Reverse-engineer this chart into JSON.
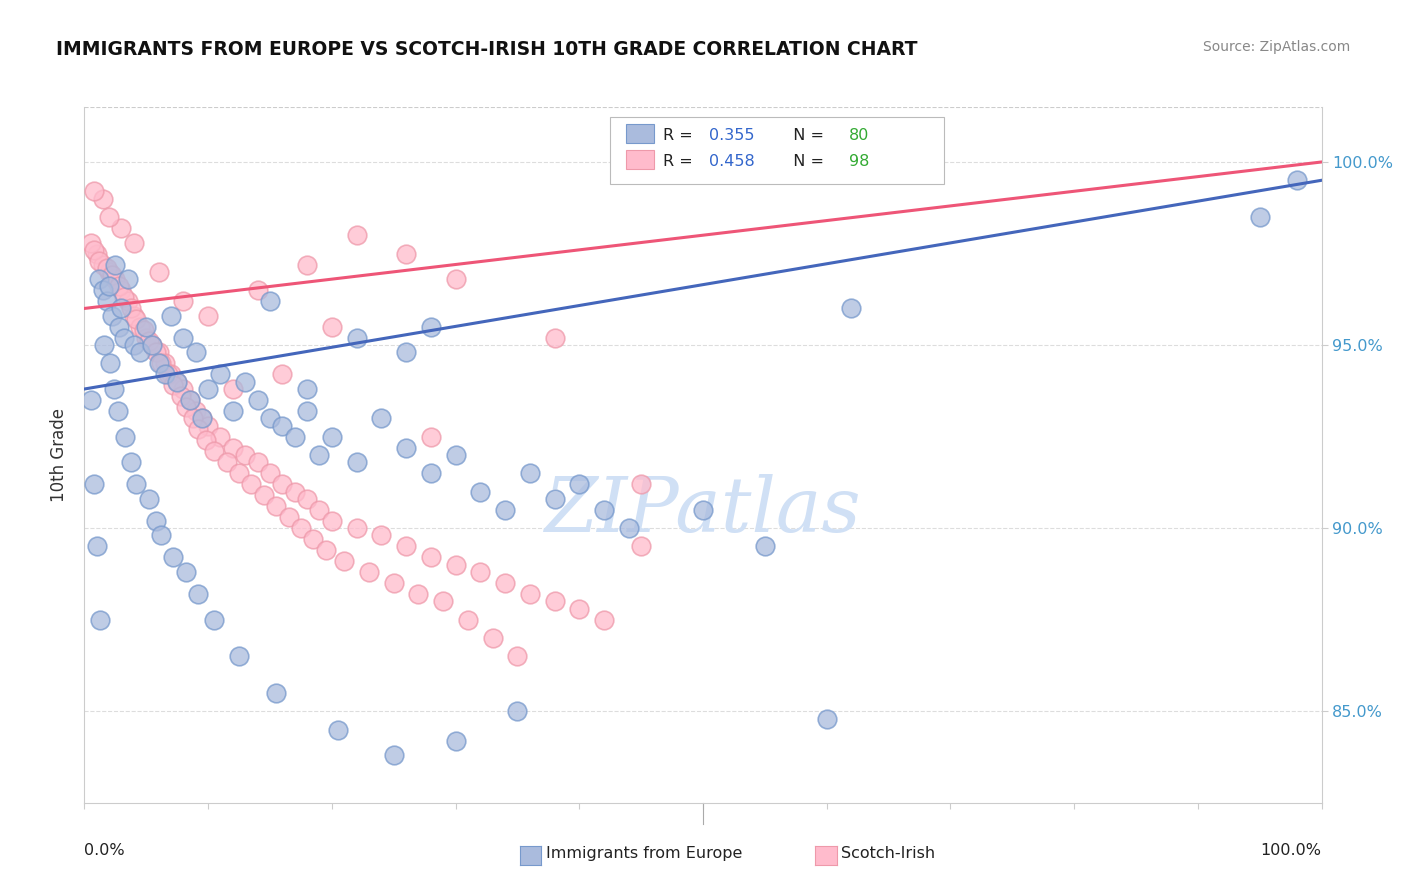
{
  "title": "IMMIGRANTS FROM EUROPE VS SCOTCH-IRISH 10TH GRADE CORRELATION CHART",
  "source": "Source: ZipAtlas.com",
  "ylabel": "10th Grade",
  "right_ytick_labels": [
    "85.0%",
    "90.0%",
    "95.0%",
    "100.0%"
  ],
  "right_ytick_values": [
    85.0,
    90.0,
    95.0,
    100.0
  ],
  "xlim": [
    0.0,
    100.0
  ],
  "ylim": [
    82.5,
    101.5
  ],
  "blue_r": "0.355",
  "blue_n": "80",
  "pink_r": "0.458",
  "pink_n": "98",
  "blue_fill": "#AABBDD",
  "blue_edge": "#7799CC",
  "pink_fill": "#FFBBCC",
  "pink_edge": "#EE99AA",
  "blue_line_color": "#4466BB",
  "pink_line_color": "#EE5577",
  "legend_r_color": "#3366CC",
  "legend_n_color": "#33AA33",
  "watermark": "ZIPatlas",
  "watermark_color": "#D0E0F5",
  "blue_points_x": [
    1.2,
    1.5,
    1.8,
    2.0,
    2.2,
    2.5,
    2.8,
    3.0,
    3.2,
    3.5,
    4.0,
    4.5,
    5.0,
    5.5,
    6.0,
    6.5,
    7.0,
    7.5,
    8.0,
    8.5,
    9.0,
    9.5,
    10.0,
    11.0,
    12.0,
    13.0,
    14.0,
    15.0,
    16.0,
    17.0,
    18.0,
    19.0,
    20.0,
    22.0,
    24.0,
    26.0,
    28.0,
    30.0,
    32.0,
    34.0,
    36.0,
    38.0,
    40.0,
    42.0,
    44.0,
    50.0,
    55.0,
    62.0,
    95.0,
    98.0,
    0.5,
    0.8,
    1.0,
    1.3,
    1.6,
    2.1,
    2.4,
    2.7,
    3.3,
    3.8,
    4.2,
    5.2,
    5.8,
    6.2,
    7.2,
    8.2,
    9.2,
    10.5,
    12.5,
    15.5,
    20.5,
    25.0,
    30.0,
    18.0,
    22.0,
    26.0,
    35.0,
    28.0,
    15.0,
    60.0
  ],
  "blue_points_y": [
    96.8,
    96.5,
    96.2,
    96.6,
    95.8,
    97.2,
    95.5,
    96.0,
    95.2,
    96.8,
    95.0,
    94.8,
    95.5,
    95.0,
    94.5,
    94.2,
    95.8,
    94.0,
    95.2,
    93.5,
    94.8,
    93.0,
    93.8,
    94.2,
    93.2,
    94.0,
    93.5,
    93.0,
    92.8,
    92.5,
    93.2,
    92.0,
    92.5,
    91.8,
    93.0,
    92.2,
    91.5,
    92.0,
    91.0,
    90.5,
    91.5,
    90.8,
    91.2,
    90.5,
    90.0,
    90.5,
    89.5,
    96.0,
    98.5,
    99.5,
    93.5,
    91.2,
    89.5,
    87.5,
    95.0,
    94.5,
    93.8,
    93.2,
    92.5,
    91.8,
    91.2,
    90.8,
    90.2,
    89.8,
    89.2,
    88.8,
    88.2,
    87.5,
    86.5,
    85.5,
    84.5,
    83.8,
    84.2,
    93.8,
    95.2,
    94.8,
    85.0,
    95.5,
    96.2,
    84.8
  ],
  "pink_points_x": [
    1.0,
    1.5,
    2.0,
    2.5,
    3.0,
    3.5,
    4.0,
    4.5,
    5.0,
    5.5,
    6.0,
    6.5,
    7.0,
    7.5,
    8.0,
    8.5,
    9.0,
    9.5,
    10.0,
    11.0,
    12.0,
    13.0,
    14.0,
    15.0,
    16.0,
    17.0,
    18.0,
    19.0,
    20.0,
    22.0,
    24.0,
    26.0,
    28.0,
    30.0,
    32.0,
    34.0,
    36.0,
    38.0,
    40.0,
    42.0,
    0.5,
    0.8,
    1.2,
    1.8,
    2.2,
    2.8,
    3.2,
    3.8,
    4.2,
    4.8,
    5.2,
    5.8,
    6.2,
    6.8,
    7.2,
    7.8,
    8.2,
    8.8,
    9.2,
    9.8,
    10.5,
    11.5,
    12.5,
    13.5,
    14.5,
    15.5,
    16.5,
    17.5,
    18.5,
    19.5,
    21.0,
    23.0,
    25.0,
    27.0,
    29.0,
    31.0,
    33.0,
    45.0,
    38.0,
    30.0,
    26.0,
    22.0,
    18.0,
    14.0,
    10.0,
    6.0,
    3.0,
    1.5,
    28.0,
    20.0,
    16.0,
    12.0,
    8.0,
    4.0,
    2.0,
    0.8,
    35.0,
    45.0
  ],
  "pink_points_y": [
    97.5,
    97.2,
    97.0,
    96.8,
    96.5,
    96.2,
    95.8,
    95.5,
    95.2,
    95.0,
    94.8,
    94.5,
    94.2,
    94.0,
    93.8,
    93.5,
    93.2,
    93.0,
    92.8,
    92.5,
    92.2,
    92.0,
    91.8,
    91.5,
    91.2,
    91.0,
    90.8,
    90.5,
    90.2,
    90.0,
    89.8,
    89.5,
    89.2,
    89.0,
    88.8,
    88.5,
    88.2,
    88.0,
    87.8,
    87.5,
    97.8,
    97.6,
    97.3,
    97.1,
    96.9,
    96.6,
    96.3,
    96.0,
    95.7,
    95.4,
    95.1,
    94.8,
    94.5,
    94.2,
    93.9,
    93.6,
    93.3,
    93.0,
    92.7,
    92.4,
    92.1,
    91.8,
    91.5,
    91.2,
    90.9,
    90.6,
    90.3,
    90.0,
    89.7,
    89.4,
    89.1,
    88.8,
    88.5,
    88.2,
    88.0,
    87.5,
    87.0,
    89.5,
    95.2,
    96.8,
    97.5,
    98.0,
    97.2,
    96.5,
    95.8,
    97.0,
    98.2,
    99.0,
    92.5,
    95.5,
    94.2,
    93.8,
    96.2,
    97.8,
    98.5,
    99.2,
    86.5,
    91.2
  ]
}
